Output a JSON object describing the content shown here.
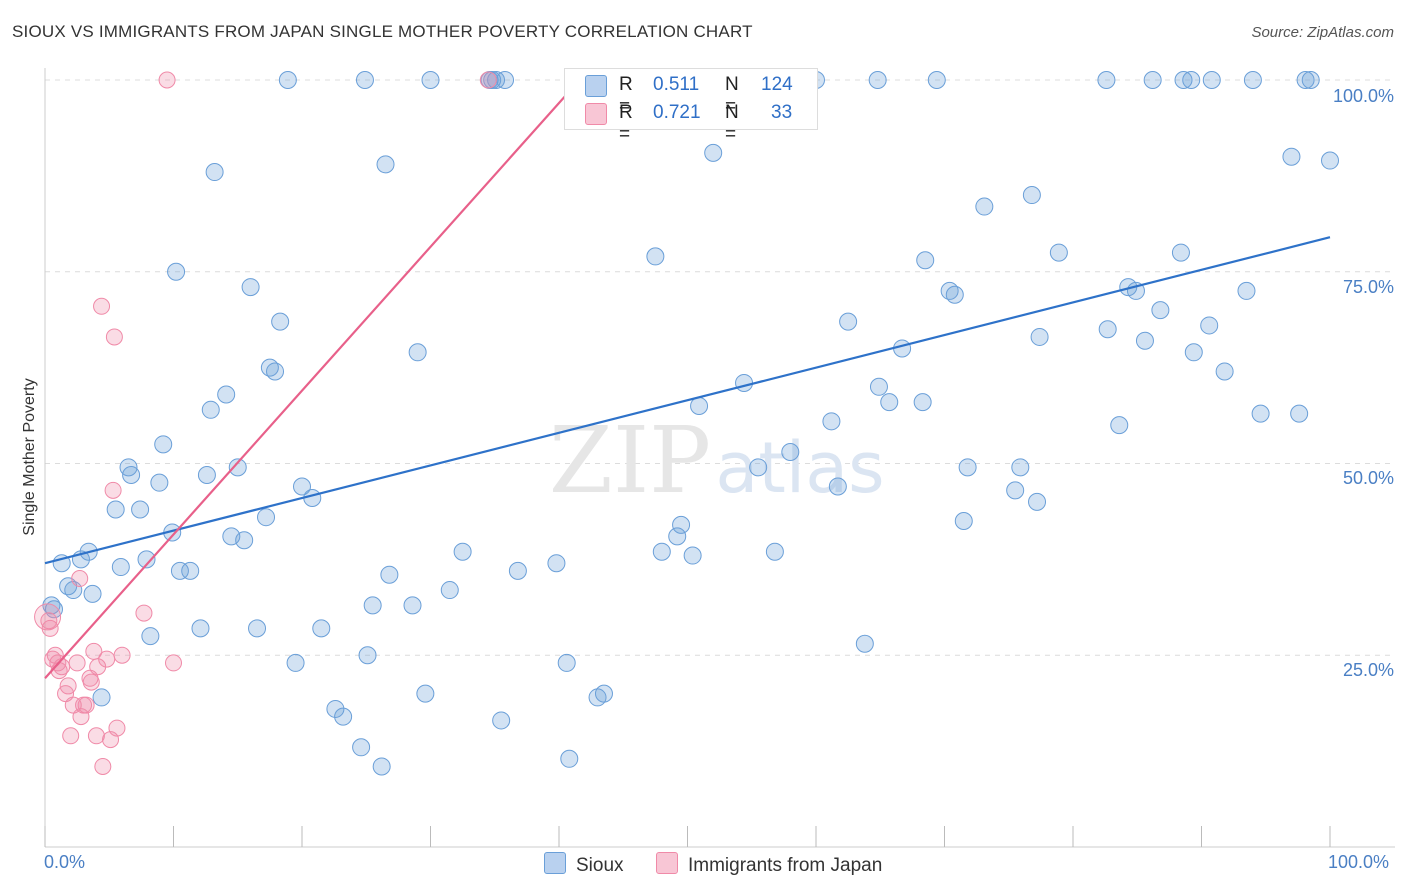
{
  "title": "SIOUX VS IMMIGRANTS FROM JAPAN SINGLE MOTHER POVERTY CORRELATION CHART",
  "source": "Source: ZipAtlas.com",
  "watermark": {
    "zip": "ZIP",
    "atlas": "atlas"
  },
  "colors": {
    "sioux": "#6a9fd8",
    "sioux_line": "#2e72c9",
    "japan": "#f08aa8",
    "japan_line": "#e8608a",
    "tick_text": "#4a7fc4"
  },
  "stats": {
    "sioux": {
      "r_label": "R =",
      "r_value": "0.511",
      "n_label": "N =",
      "n_value": "124"
    },
    "japan": {
      "r_label": "R =",
      "r_value": "0.721",
      "n_label": "N =",
      "n_value": "33"
    }
  },
  "legend": {
    "sioux": "Sioux",
    "japan": "Immigrants from Japan"
  },
  "chart_data": {
    "type": "scatter",
    "title": "SIOUX VS IMMIGRANTS FROM JAPAN SINGLE MOTHER POVERTY CORRELATION CHART",
    "xlabel": "",
    "ylabel": "Single Mother Poverty",
    "xlim": [
      0,
      100
    ],
    "ylim": [
      0,
      100
    ],
    "x_tick_labels": [
      "0.0%",
      "100.0%"
    ],
    "y_tick_labels": [
      "25.0%",
      "50.0%",
      "75.0%",
      "100.0%"
    ],
    "y_ticks": [
      25,
      50,
      75,
      100
    ],
    "grid": true,
    "series": [
      {
        "name": "Sioux",
        "trend": {
          "x": [
            0,
            100
          ],
          "y": [
            37,
            79.5
          ]
        },
        "points": [
          [
            0.5,
            31.5
          ],
          [
            0.7,
            31
          ],
          [
            1.3,
            37
          ],
          [
            1.8,
            34
          ],
          [
            2.2,
            33.5
          ],
          [
            2.8,
            37.5
          ],
          [
            3.4,
            38.5
          ],
          [
            3.7,
            33
          ],
          [
            4.4,
            19.5
          ],
          [
            5.5,
            44
          ],
          [
            5.9,
            36.5
          ],
          [
            6.5,
            49.5
          ],
          [
            6.7,
            48.5
          ],
          [
            7.4,
            44
          ],
          [
            7.9,
            37.5
          ],
          [
            8.2,
            27.5
          ],
          [
            8.9,
            47.5
          ],
          [
            9.2,
            52.5
          ],
          [
            9.9,
            41
          ],
          [
            10.2,
            75
          ],
          [
            10.5,
            36
          ],
          [
            11.3,
            36
          ],
          [
            12.1,
            28.5
          ],
          [
            12.6,
            48.5
          ],
          [
            12.9,
            57
          ],
          [
            13.2,
            88
          ],
          [
            14.1,
            59
          ],
          [
            14.5,
            40.5
          ],
          [
            15,
            49.5
          ],
          [
            15.5,
            40
          ],
          [
            16,
            73
          ],
          [
            16.5,
            28.5
          ],
          [
            17.2,
            43
          ],
          [
            17.5,
            62.5
          ],
          [
            17.9,
            62
          ],
          [
            18.3,
            68.5
          ],
          [
            18.9,
            100
          ],
          [
            19.5,
            24
          ],
          [
            20,
            47
          ],
          [
            20.8,
            45.5
          ],
          [
            21.5,
            28.5
          ],
          [
            22.6,
            18
          ],
          [
            23.2,
            17
          ],
          [
            24.6,
            13
          ],
          [
            24.9,
            100
          ],
          [
            25.1,
            25
          ],
          [
            25.5,
            31.5
          ],
          [
            26.2,
            10.5
          ],
          [
            26.5,
            89
          ],
          [
            26.8,
            35.5
          ],
          [
            28.6,
            31.5
          ],
          [
            29,
            64.5
          ],
          [
            29.6,
            20
          ],
          [
            30,
            100
          ],
          [
            31.5,
            33.5
          ],
          [
            32.5,
            38.5
          ],
          [
            35.1,
            100
          ],
          [
            35.5,
            16.5
          ],
          [
            35.8,
            100
          ],
          [
            36.8,
            36
          ],
          [
            39.8,
            37
          ],
          [
            40.6,
            24
          ],
          [
            40.8,
            11.5
          ],
          [
            43,
            19.5
          ],
          [
            43.5,
            20
          ],
          [
            47.5,
            77
          ],
          [
            48,
            38.5
          ],
          [
            49.2,
            40.5
          ],
          [
            49.5,
            42
          ],
          [
            50.4,
            38
          ],
          [
            50.9,
            57.5
          ],
          [
            52,
            90.5
          ],
          [
            54.4,
            60.5
          ],
          [
            55.5,
            49.5
          ],
          [
            56.8,
            38.5
          ],
          [
            58,
            51.5
          ],
          [
            60,
            100
          ],
          [
            61.2,
            55.5
          ],
          [
            61.7,
            47
          ],
          [
            62.5,
            68.5
          ],
          [
            63.8,
            26.5
          ],
          [
            64.8,
            100
          ],
          [
            64.9,
            60
          ],
          [
            65.7,
            58
          ],
          [
            66.7,
            65
          ],
          [
            68.3,
            58
          ],
          [
            68.5,
            76.5
          ],
          [
            69.4,
            100
          ],
          [
            70.4,
            72.5
          ],
          [
            70.8,
            72
          ],
          [
            71.5,
            42.5
          ],
          [
            71.8,
            49.5
          ],
          [
            73.1,
            83.5
          ],
          [
            75.5,
            46.5
          ],
          [
            75.9,
            49.5
          ],
          [
            76.8,
            85
          ],
          [
            77.2,
            45
          ],
          [
            77.4,
            66.5
          ],
          [
            78.9,
            77.5
          ],
          [
            82.6,
            100
          ],
          [
            82.7,
            67.5
          ],
          [
            83.6,
            55
          ],
          [
            84.3,
            73
          ],
          [
            84.9,
            72.5
          ],
          [
            85.6,
            66
          ],
          [
            86.2,
            100
          ],
          [
            86.8,
            70
          ],
          [
            88.4,
            77.5
          ],
          [
            88.6,
            100
          ],
          [
            89.2,
            100
          ],
          [
            89.4,
            64.5
          ],
          [
            90.6,
            68
          ],
          [
            90.8,
            100
          ],
          [
            91.8,
            62
          ],
          [
            93.5,
            72.5
          ],
          [
            94,
            100
          ],
          [
            94.6,
            56.5
          ],
          [
            97,
            90
          ],
          [
            97.6,
            56.5
          ],
          [
            98.1,
            100
          ],
          [
            98.5,
            100
          ],
          [
            100,
            89.5
          ],
          [
            34.6,
            100
          ],
          [
            34.8,
            100
          ]
        ]
      },
      {
        "name": "Immigrants from Japan",
        "trend": {
          "x": [
            0,
            41.6
          ],
          "y": [
            22,
            100
          ]
        },
        "points": [
          [
            0.3,
            29.5
          ],
          [
            0.4,
            28.5
          ],
          [
            0.6,
            24.5
          ],
          [
            0.8,
            25
          ],
          [
            1,
            24
          ],
          [
            1.1,
            23
          ],
          [
            1.3,
            23.5
          ],
          [
            1.6,
            20
          ],
          [
            1.8,
            21
          ],
          [
            2,
            14.5
          ],
          [
            2.2,
            18.5
          ],
          [
            2.5,
            24
          ],
          [
            2.7,
            35
          ],
          [
            2.8,
            17
          ],
          [
            3,
            18.5
          ],
          [
            3.2,
            18.5
          ],
          [
            3.5,
            22
          ],
          [
            3.6,
            21.5
          ],
          [
            3.8,
            25.5
          ],
          [
            4,
            14.5
          ],
          [
            4.1,
            23.5
          ],
          [
            4.5,
            10.5
          ],
          [
            4.8,
            24.5
          ],
          [
            5.1,
            14
          ],
          [
            5.3,
            46.5
          ],
          [
            5.4,
            66.5
          ],
          [
            5.6,
            15.5
          ],
          [
            6,
            25
          ],
          [
            7.7,
            30.5
          ],
          [
            10,
            24
          ],
          [
            4.4,
            70.5
          ],
          [
            9.5,
            100
          ],
          [
            34.5,
            100
          ]
        ]
      }
    ]
  }
}
